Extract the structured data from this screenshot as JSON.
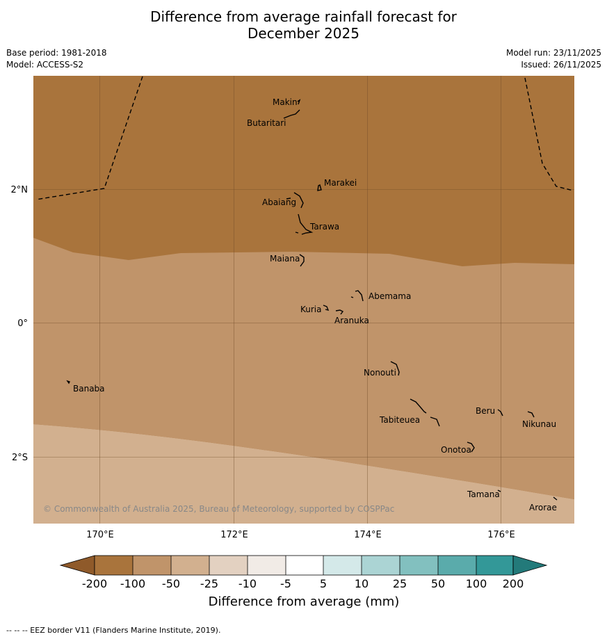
{
  "title": {
    "line1": "Difference from average rainfall forecast for",
    "line2": "December 2025"
  },
  "meta": {
    "base_period": "Base period: 1981-2018",
    "model": "Model: ACCESS-S2",
    "model_run": "Model run: 23/11/2025",
    "issued": "Issued: 26/11/2025"
  },
  "axes": {
    "lat_labels": [
      "2°N",
      "0°",
      "2°S"
    ],
    "lon_labels": [
      "170°E",
      "172°E",
      "174°E",
      "176°E"
    ]
  },
  "places": {
    "makin": "Makin",
    "butaritari": "Butaritari",
    "marakei": "Marakei",
    "abaiang": "Abaiang",
    "tarawa": "Tarawa",
    "maiana": "Maiana",
    "abemama": "Abemama",
    "kuria": "Kuria",
    "aranuka": "Aranuka",
    "banaba": "Banaba",
    "nonouti": "Nonouti",
    "tabiteuea": "Tabiteuea",
    "beru": "Beru",
    "nikunau": "Nikunau",
    "onotoa": "Onotoa",
    "tamana": "Tamana",
    "arorae": "Arorae"
  },
  "copyright": "© Commonwealth of Australia 2025, Bureau of Meteorology, supported by COSPPac",
  "colorbar": {
    "label": "Difference from average (mm)",
    "ticks": [
      "-200",
      "-100",
      "-50",
      "-25",
      "-10",
      "-5",
      "5",
      "10",
      "25",
      "50",
      "100",
      "200"
    ],
    "colors": {
      "lt_-200": "#8f5a2a",
      "-200_-100": "#a9743c",
      "-100_-50": "#c0946a",
      "-50_-25": "#d2b08f",
      "-25_-10": "#e3d1c1",
      "-10_-5": "#f1ebe6",
      "-5_5": "#ffffff",
      "5_10": "#d4e9e9",
      "10_25": "#abd4d4",
      "25_50": "#82c0bf",
      "50_100": "#5aabab",
      "100_200": "#339898",
      "gt_200": "#237a7a"
    }
  },
  "footnote": "--  --  -- EEZ border V11 (Flanders Marine Institute, 2019)."
}
